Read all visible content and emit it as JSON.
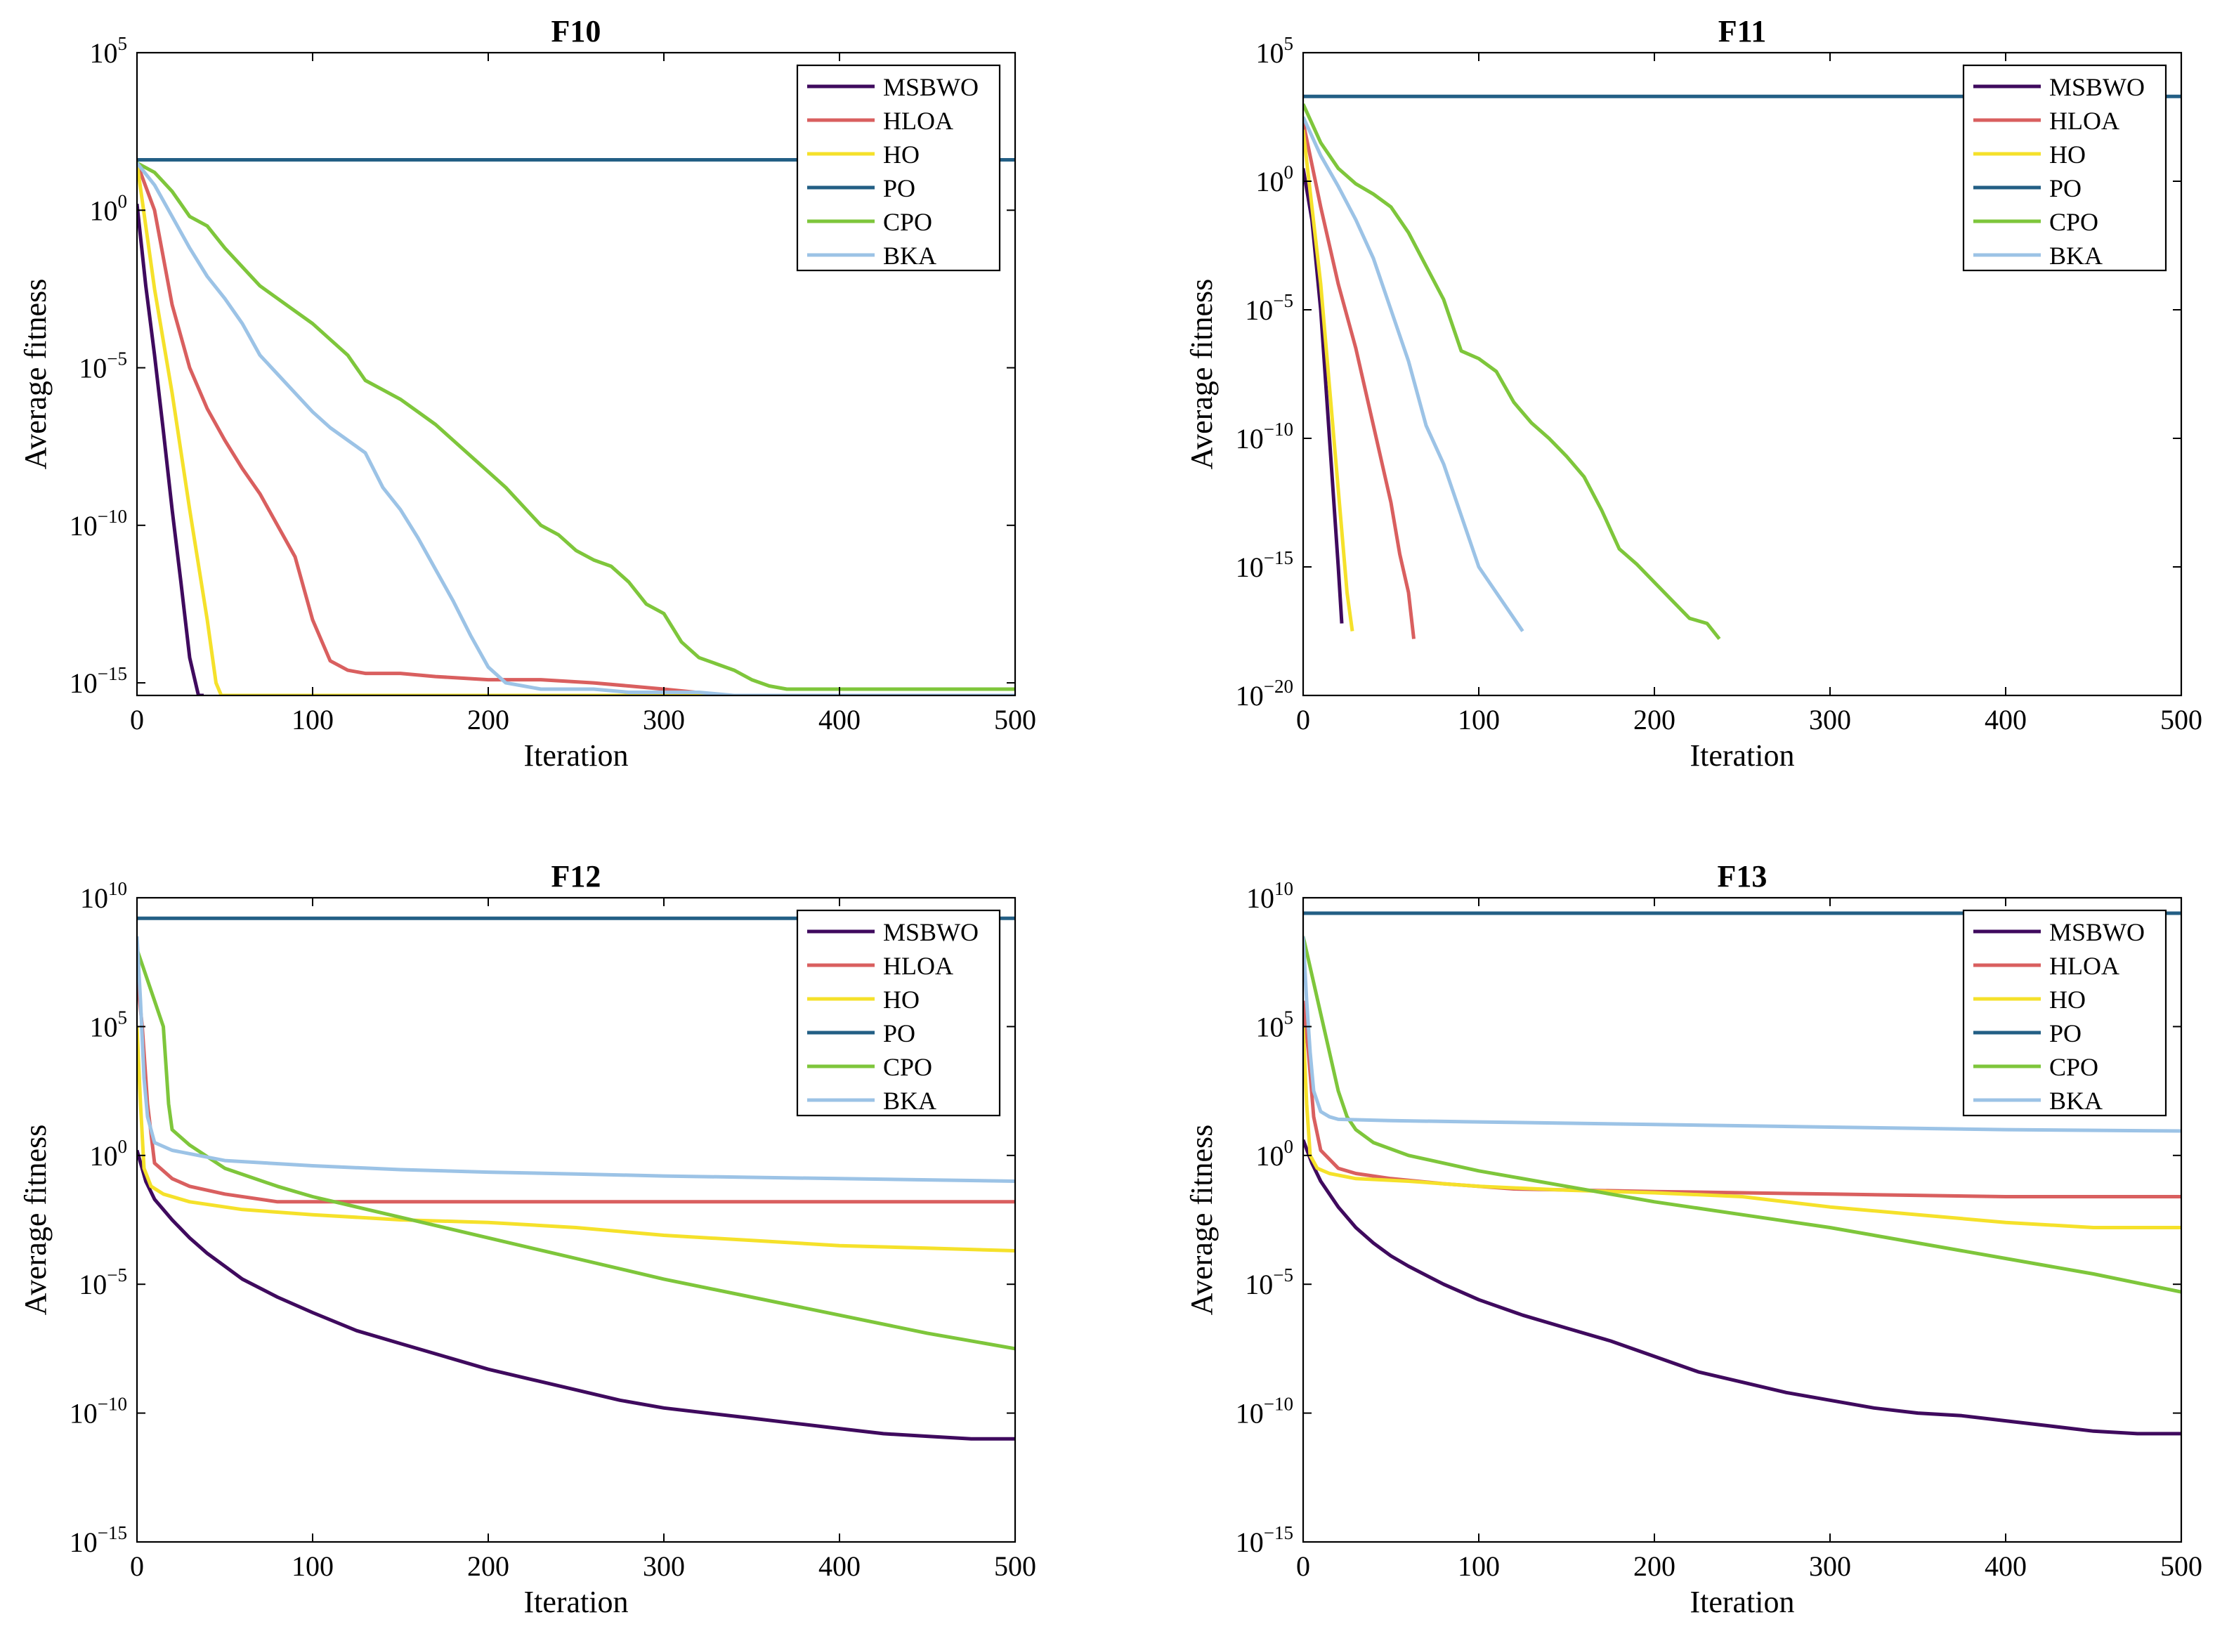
{
  "figure": {
    "xlabel": "Iteration",
    "ylabel": "Average fitness"
  },
  "chart_data": [
    {
      "type": "line",
      "title": "F10",
      "xlabel": "Iteration",
      "ylabel": "Average fitness",
      "xlim": [
        0,
        500
      ],
      "xticks": [
        0,
        100,
        200,
        300,
        400,
        500
      ],
      "yscale": "log",
      "ylim_exp": [
        -15.4,
        5
      ],
      "yticks_exp": [
        -15,
        -10,
        -5,
        0,
        5
      ],
      "legend_position": "top-right",
      "series": [
        {
          "name": "MSBWO",
          "color": "#3f0a5e",
          "x": [
            0,
            5,
            10,
            15,
            20,
            25,
            30,
            35,
            38
          ],
          "y_exp": [
            0.2,
            -2.4,
            -4.6,
            -7,
            -9.5,
            -11.8,
            -14.2,
            -15.4,
            -15.4
          ]
        },
        {
          "name": "HLOA",
          "color": "#d95f5f",
          "x": [
            0,
            10,
            20,
            30,
            40,
            50,
            60,
            70,
            80,
            90,
            95,
            100,
            110,
            120,
            130,
            150,
            170,
            200,
            230,
            260,
            280,
            300,
            318
          ],
          "y_exp": [
            1.5,
            0,
            -3,
            -5,
            -6.3,
            -7.3,
            -8.2,
            -9,
            -10,
            -11,
            -12,
            -13,
            -14.3,
            -14.6,
            -14.7,
            -14.7,
            -14.8,
            -14.9,
            -14.9,
            -15,
            -15.1,
            -15.2,
            -15.3
          ]
        },
        {
          "name": "HO",
          "color": "#f5e12a",
          "x": [
            0,
            10,
            20,
            30,
            40,
            45,
            48,
            500
          ],
          "y_exp": [
            1.5,
            -2.5,
            -5.8,
            -9.5,
            -13,
            -15,
            -15.4,
            -15.4
          ]
        },
        {
          "name": "PO",
          "color": "#235f85",
          "x": [
            0,
            500
          ],
          "y_exp": [
            1.6,
            1.6
          ]
        },
        {
          "name": "CPO",
          "color": "#7ec63b",
          "x": [
            0,
            10,
            20,
            30,
            40,
            50,
            60,
            70,
            80,
            90,
            100,
            110,
            120,
            130,
            140,
            150,
            160,
            170,
            180,
            190,
            200,
            210,
            220,
            230,
            240,
            250,
            260,
            270,
            280,
            290,
            300,
            310,
            320,
            330,
            340,
            350,
            360,
            370,
            380,
            400,
            450,
            500
          ],
          "y_exp": [
            1.5,
            1.2,
            0.6,
            -0.2,
            -0.5,
            -1.2,
            -1.8,
            -2.4,
            -2.8,
            -3.2,
            -3.6,
            -4.1,
            -4.6,
            -5.4,
            -5.7,
            -6,
            -6.4,
            -6.8,
            -7.3,
            -7.8,
            -8.3,
            -8.8,
            -9.4,
            -10,
            -10.3,
            -10.8,
            -11.1,
            -11.3,
            -11.8,
            -12.5,
            -12.8,
            -13.7,
            -14.2,
            -14.4,
            -14.6,
            -14.9,
            -15.1,
            -15.2,
            -15.2,
            -15.2,
            -15.2,
            -15.2
          ]
        },
        {
          "name": "BKA",
          "color": "#9cc3e6",
          "x": [
            0,
            10,
            20,
            30,
            40,
            50,
            60,
            70,
            80,
            90,
            100,
            110,
            120,
            130,
            140,
            150,
            160,
            170,
            180,
            190,
            200,
            210,
            220,
            230,
            240,
            260,
            280,
            300,
            320,
            340,
            360,
            380,
            400,
            450,
            500
          ],
          "y_exp": [
            1.5,
            0.8,
            -0.2,
            -1.2,
            -2.1,
            -2.8,
            -3.6,
            -4.6,
            -5.2,
            -5.8,
            -6.4,
            -6.9,
            -7.3,
            -7.7,
            -8.8,
            -9.5,
            -10.4,
            -11.4,
            -12.4,
            -13.5,
            -14.5,
            -15,
            -15.1,
            -15.2,
            -15.2,
            -15.2,
            -15.3,
            -15.3,
            -15.3,
            -15.4,
            -15.4,
            -15.4,
            -15.4,
            -15.4,
            -15.4
          ]
        }
      ]
    },
    {
      "type": "line",
      "title": "F11",
      "xlabel": "Iteration",
      "ylabel": "Average fitness",
      "xlim": [
        0,
        500
      ],
      "xticks": [
        0,
        100,
        200,
        300,
        400,
        500
      ],
      "yscale": "log",
      "ylim_exp": [
        -20,
        5
      ],
      "yticks_exp": [
        -20,
        -15,
        -10,
        -5,
        0,
        5
      ],
      "legend_position": "top-right",
      "series": [
        {
          "name": "MSBWO",
          "color": "#3f0a5e",
          "x": [
            0,
            5,
            10,
            15,
            20,
            22
          ],
          "y_exp": [
            0.5,
            -1.5,
            -5,
            -10,
            -15,
            -17.2
          ]
        },
        {
          "name": "HLOA",
          "color": "#d95f5f",
          "x": [
            0,
            10,
            20,
            30,
            40,
            50,
            55,
            60,
            63
          ],
          "y_exp": [
            2.3,
            -1,
            -4,
            -6.5,
            -9.5,
            -12.5,
            -14.5,
            -16,
            -17.8
          ]
        },
        {
          "name": "HO",
          "color": "#f5e12a",
          "x": [
            0,
            5,
            10,
            15,
            20,
            25,
            28
          ],
          "y_exp": [
            2,
            -1,
            -4,
            -8,
            -12,
            -16,
            -17.5
          ]
        },
        {
          "name": "PO",
          "color": "#235f85",
          "x": [
            0,
            500
          ],
          "y_exp": [
            3.3,
            3.3
          ]
        },
        {
          "name": "CPO",
          "color": "#7ec63b",
          "x": [
            0,
            10,
            20,
            30,
            40,
            50,
            60,
            70,
            80,
            90,
            100,
            110,
            120,
            130,
            140,
            150,
            160,
            170,
            180,
            190,
            200,
            210,
            220,
            230,
            237
          ],
          "y_exp": [
            3,
            1.5,
            0.5,
            -0.1,
            -0.5,
            -1,
            -2,
            -3.3,
            -4.6,
            -6.6,
            -6.9,
            -7.4,
            -8.6,
            -9.4,
            -10,
            -10.7,
            -11.5,
            -12.8,
            -14.3,
            -14.9,
            -15.6,
            -16.3,
            -17,
            -17.2,
            -17.8
          ]
        },
        {
          "name": "BKA",
          "color": "#9cc3e6",
          "x": [
            0,
            10,
            20,
            30,
            40,
            50,
            60,
            70,
            80,
            90,
            100,
            110,
            120,
            125
          ],
          "y_exp": [
            2.5,
            1,
            -0.2,
            -1.5,
            -3,
            -5,
            -7,
            -9.5,
            -11,
            -13,
            -15,
            -16,
            -17,
            -17.5
          ]
        }
      ]
    },
    {
      "type": "line",
      "title": "F12",
      "xlabel": "Iteration",
      "ylabel": "Average fitness",
      "xlim": [
        0,
        500
      ],
      "xticks": [
        0,
        100,
        200,
        300,
        400,
        500
      ],
      "yscale": "log",
      "ylim_exp": [
        -15,
        10
      ],
      "yticks_exp": [
        -15,
        -10,
        -5,
        0,
        5,
        10
      ],
      "legend_position": "top-right",
      "series": [
        {
          "name": "MSBWO",
          "color": "#3f0a5e",
          "x": [
            0,
            5,
            10,
            20,
            30,
            40,
            50,
            60,
            80,
            100,
            125,
            150,
            175,
            200,
            225,
            250,
            275,
            300,
            325,
            350,
            375,
            400,
            425,
            450,
            475,
            500
          ],
          "y_exp": [
            0.2,
            -1,
            -1.7,
            -2.5,
            -3.2,
            -3.8,
            -4.3,
            -4.8,
            -5.5,
            -6.1,
            -6.8,
            -7.3,
            -7.8,
            -8.3,
            -8.7,
            -9.1,
            -9.5,
            -9.8,
            -10,
            -10.2,
            -10.4,
            -10.6,
            -10.8,
            -10.9,
            -11,
            -11
          ]
        },
        {
          "name": "HLOA",
          "color": "#d95f5f",
          "x": [
            0,
            3,
            6,
            10,
            20,
            30,
            50,
            80,
            120,
            200,
            300,
            400,
            500
          ],
          "y_exp": [
            7,
            5,
            2,
            -0.3,
            -0.9,
            -1.2,
            -1.5,
            -1.8,
            -1.8,
            -1.8,
            -1.8,
            -1.8,
            -1.8
          ]
        },
        {
          "name": "HO",
          "color": "#f5e12a",
          "x": [
            0,
            2,
            4,
            8,
            15,
            30,
            60,
            100,
            150,
            200,
            250,
            300,
            350,
            400,
            450,
            500
          ],
          "y_exp": [
            5,
            2,
            -0.5,
            -1.2,
            -1.5,
            -1.8,
            -2.1,
            -2.3,
            -2.5,
            -2.6,
            -2.8,
            -3.1,
            -3.3,
            -3.5,
            -3.6,
            -3.7
          ]
        },
        {
          "name": "PO",
          "color": "#235f85",
          "x": [
            0,
            500
          ],
          "y_exp": [
            9.2,
            9.2
          ]
        },
        {
          "name": "CPO",
          "color": "#7ec63b",
          "x": [
            0,
            5,
            10,
            15,
            18,
            20,
            30,
            50,
            80,
            100,
            150,
            200,
            250,
            300,
            350,
            400,
            450,
            500
          ],
          "y_exp": [
            8,
            7,
            6,
            5,
            2,
            1,
            0.4,
            -0.5,
            -1.2,
            -1.6,
            -2.4,
            -3.2,
            -4,
            -4.8,
            -5.5,
            -6.2,
            -6.9,
            -7.5
          ]
        },
        {
          "name": "BKA",
          "color": "#9cc3e6",
          "x": [
            0,
            2,
            4,
            6,
            10,
            20,
            50,
            100,
            150,
            200,
            250,
            300,
            350,
            400,
            450,
            500
          ],
          "y_exp": [
            8.5,
            6,
            3,
            1.5,
            0.5,
            0.2,
            -0.2,
            -0.4,
            -0.55,
            -0.65,
            -0.72,
            -0.8,
            -0.85,
            -0.9,
            -0.95,
            -1
          ]
        }
      ]
    },
    {
      "type": "line",
      "title": "F13",
      "xlabel": "Iteration",
      "ylabel": "Average fitness",
      "xlim": [
        0,
        500
      ],
      "xticks": [
        0,
        100,
        200,
        300,
        400,
        500
      ],
      "yscale": "log",
      "ylim_exp": [
        -15,
        10
      ],
      "yticks_exp": [
        -15,
        -10,
        -5,
        0,
        5,
        10
      ],
      "legend_position": "top-right",
      "series": [
        {
          "name": "MSBWO",
          "color": "#3f0a5e",
          "x": [
            0,
            5,
            10,
            20,
            30,
            40,
            50,
            60,
            80,
            100,
            125,
            150,
            175,
            200,
            225,
            250,
            275,
            300,
            325,
            350,
            375,
            400,
            425,
            450,
            475,
            500
          ],
          "y_exp": [
            0.6,
            -0.3,
            -1,
            -2,
            -2.8,
            -3.4,
            -3.9,
            -4.3,
            -5,
            -5.6,
            -6.2,
            -6.7,
            -7.2,
            -7.8,
            -8.4,
            -8.8,
            -9.2,
            -9.5,
            -9.8,
            -10,
            -10.1,
            -10.3,
            -10.5,
            -10.7,
            -10.8,
            -10.8
          ]
        },
        {
          "name": "HLOA",
          "color": "#d95f5f",
          "x": [
            0,
            3,
            6,
            10,
            20,
            30,
            50,
            80,
            120,
            200,
            300,
            400,
            500
          ],
          "y_exp": [
            6,
            4,
            1.5,
            0.2,
            -0.5,
            -0.7,
            -0.9,
            -1.1,
            -1.3,
            -1.4,
            -1.5,
            -1.6,
            -1.6
          ]
        },
        {
          "name": "HO",
          "color": "#f5e12a",
          "x": [
            0,
            2,
            4,
            8,
            15,
            30,
            60,
            100,
            150,
            200,
            250,
            300,
            350,
            400,
            450,
            500
          ],
          "y_exp": [
            5,
            2,
            0,
            -0.5,
            -0.7,
            -0.9,
            -1.0,
            -1.2,
            -1.35,
            -1.45,
            -1.6,
            -2,
            -2.3,
            -2.6,
            -2.8,
            -2.8
          ]
        },
        {
          "name": "PO",
          "color": "#235f85",
          "x": [
            0,
            500
          ],
          "y_exp": [
            9.4,
            9.4
          ]
        },
        {
          "name": "CPO",
          "color": "#7ec63b",
          "x": [
            0,
            5,
            10,
            15,
            20,
            25,
            30,
            40,
            60,
            100,
            150,
            200,
            250,
            300,
            350,
            400,
            450,
            500
          ],
          "y_exp": [
            8.5,
            7,
            5.5,
            4,
            2.5,
            1.5,
            1,
            0.5,
            0,
            -0.6,
            -1.2,
            -1.8,
            -2.3,
            -2.8,
            -3.4,
            -4.0,
            -4.6,
            -5.3
          ]
        },
        {
          "name": "BKA",
          "color": "#9cc3e6",
          "x": [
            0,
            2,
            4,
            6,
            10,
            15,
            20,
            50,
            100,
            200,
            300,
            400,
            500
          ],
          "y_exp": [
            8.5,
            6,
            4,
            2.5,
            1.7,
            1.5,
            1.4,
            1.35,
            1.3,
            1.2,
            1.1,
            1.0,
            0.95
          ]
        }
      ]
    }
  ]
}
